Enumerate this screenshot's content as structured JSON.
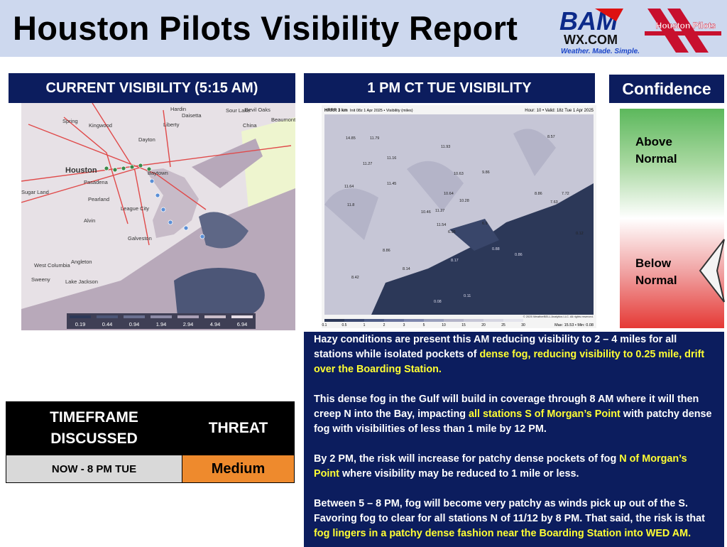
{
  "header": {
    "title": "Houston Pilots Visibility Report",
    "logo_bam": "BAM",
    "logo_wx": "WX.COM",
    "logo_tagline": "Weather. Made. Simple.",
    "logo_pilots": "Houston Pilots"
  },
  "panels": {
    "current": "CURRENT VISIBILITY (5:15 AM)",
    "forecast": "1 PM CT TUE VISIBILITY"
  },
  "current_map": {
    "places": [
      "Hardin",
      "Sour Lake",
      "Bevil Oaks",
      "Beaumont",
      "Daisetta",
      "Liberty",
      "China",
      "Spring",
      "Kingwood",
      "Dayton",
      "Houston",
      "Baytown",
      "Pasadena",
      "Sugar Land",
      "Pearland",
      "League City",
      "Alvin",
      "Galveston",
      "Angleton",
      "West Columbia",
      "Sweeny",
      "Lake Jackson"
    ],
    "legend": [
      0.19,
      0.44,
      0.94,
      1.94,
      2.94,
      4.94,
      6.94
    ]
  },
  "forecast_map": {
    "model": "HRRR 3 km",
    "init": "Init 08z 1 Apr 2025 • Visibility (miles)",
    "valid": "Hour: 10 • Valid: 18z Tue 1 Apr 2025",
    "station_values": [
      14.85,
      11.79,
      11.93,
      11.16,
      11.27,
      11.45,
      10.63,
      9.86,
      11.64,
      10.64,
      10.28,
      11.8,
      10.46,
      11.27,
      11.54,
      6.95,
      8.86,
      8.17,
      8.14,
      8.42,
      0.11,
      0.08,
      8.57,
      8.86,
      7.72,
      7.63,
      0.12,
      0.88,
      0.86,
      6.9
    ],
    "scale": [
      0.1,
      0.5,
      1,
      2,
      3,
      5,
      10,
      15,
      20,
      25,
      30
    ],
    "maxmin": "Max: 15.53 • Min: 0.08",
    "credit": "© 2025 WeatherBELL Analytics LLC. All rights reserved."
  },
  "confidence": {
    "title": "Confidence",
    "above": "Above Normal",
    "below": "Below Normal",
    "selected": "below"
  },
  "table": {
    "headers": [
      "TIMEFRAME DISCUSSED",
      "THREAT"
    ],
    "rows": [
      [
        "NOW - 8 PM TUE",
        "Medium"
      ]
    ]
  },
  "notes": [
    [
      {
        "text": "Hazy conditions are present this AM reducing visibility to 2 – 4 miles for all stations while isolated pockets of ",
        "highlight": false
      },
      {
        "text": "dense fog, reducing visibility to 0.25 mile, drift over the Boarding Station.",
        "highlight": true
      }
    ],
    [
      {
        "text": "This dense fog in the Gulf will build in coverage through 8 AM where it will then creep N into the Bay, impacting ",
        "highlight": false
      },
      {
        "text": "all stations S of Morgan’s Point",
        "highlight": true
      },
      {
        "text": " with patchy dense fog with visibilities of less than 1 mile by 12 PM.",
        "highlight": false
      }
    ],
    [
      {
        "text": "By 2 PM, the risk will increase for patchy dense pockets of fog ",
        "highlight": false
      },
      {
        "text": "N of Morgan’s Point",
        "highlight": true
      },
      {
        "text": " where visibility may be reduced to 1 mile or less.",
        "highlight": false
      }
    ],
    [
      {
        "text": "Between 5 – 8 PM, fog will become very patchy as winds pick up out of the S. Favoring fog to clear for all stations N of 11/12 by 8 PM.  That said, the risk is that ",
        "highlight": false
      },
      {
        "text": "fog lingers in a patchy dense fashion near the Boarding Station into WED AM.",
        "highlight": true
      }
    ]
  ]
}
